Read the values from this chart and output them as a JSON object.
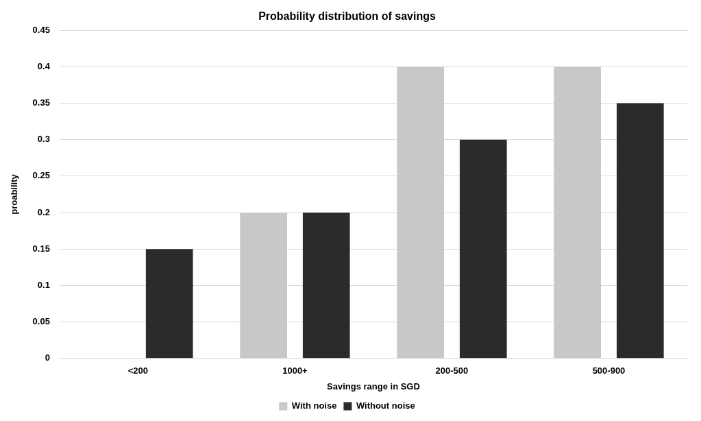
{
  "chart_data": {
    "type": "bar",
    "title": "Probability distribution of savings",
    "xlabel": "Savings range in SGD",
    "ylabel": "proability",
    "categories": [
      "<200",
      "1000+",
      "200-500",
      "500-900"
    ],
    "series": [
      {
        "name": "With noise",
        "color": "#c8c8c8",
        "values": [
          0,
          0.2,
          0.4,
          0.4
        ]
      },
      {
        "name": "Without noise",
        "color": "#2b2b2b",
        "values": [
          0.15,
          0.2,
          0.3,
          0.35
        ]
      }
    ],
    "ylim": [
      0,
      0.45
    ],
    "yticks": [
      0,
      0.05,
      0.1,
      0.15,
      0.2,
      0.25,
      0.3,
      0.35,
      0.4,
      0.45
    ],
    "grid": "y",
    "legend": "bottom"
  }
}
